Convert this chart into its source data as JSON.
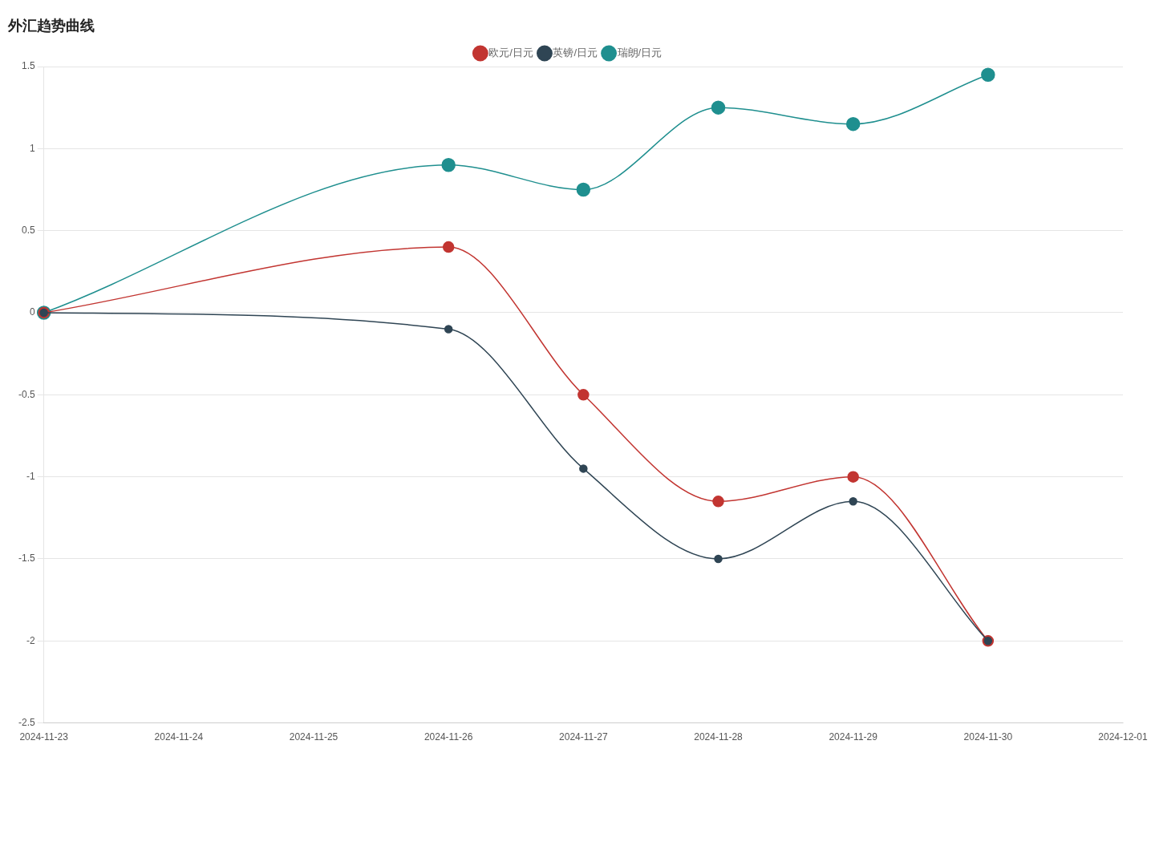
{
  "chart_data": {
    "type": "line",
    "title": "外汇趋势曲线",
    "categories": [
      "2024-11-23",
      "2024-11-24",
      "2024-11-25",
      "2024-11-26",
      "2024-11-27",
      "2024-11-28",
      "2024-11-29",
      "2024-11-30",
      "2024-12-01"
    ],
    "series": [
      {
        "name": "欧元/日元",
        "color": "#c23531",
        "values": [
          0,
          null,
          null,
          0.4,
          -0.5,
          -1.15,
          -1.0,
          -2.0,
          null
        ]
      },
      {
        "name": "英镑/日元",
        "color": "#2f4554",
        "values": [
          0,
          null,
          null,
          -0.1,
          -0.95,
          -1.5,
          -1.15,
          -2.0,
          null
        ]
      },
      {
        "name": "瑞朗/日元",
        "color": "#1f8f8f",
        "values": [
          0,
          null,
          null,
          0.9,
          0.75,
          1.25,
          1.15,
          1.45,
          null
        ]
      }
    ],
    "ylim": [
      -2.5,
      1.5
    ],
    "yticks": [
      -2.5,
      -2,
      -1.5,
      -1,
      -0.5,
      0,
      0.5,
      1,
      1.5
    ],
    "grid": "y",
    "legend": "top",
    "marker": "circle",
    "line_style": "solid"
  }
}
